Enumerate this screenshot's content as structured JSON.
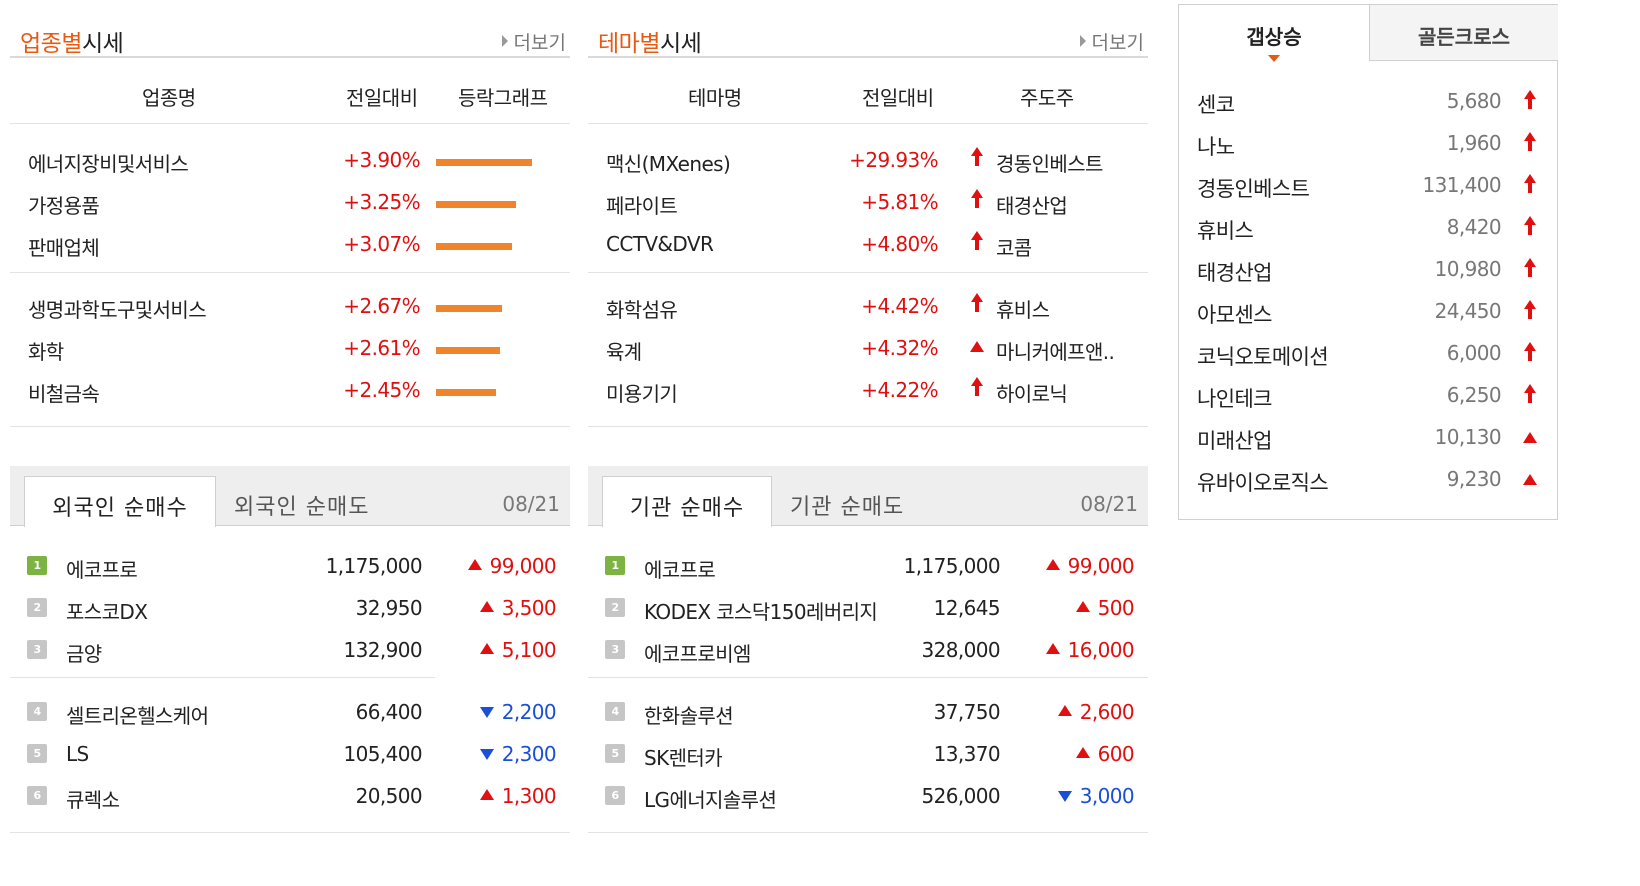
{
  "sector": {
    "title_accent": "업종별",
    "title_rest": "시세",
    "more": "더보기",
    "headers": [
      "업종명",
      "전일대비",
      "등락그래프"
    ],
    "rows": [
      {
        "name": "에너지장비및서비스",
        "change": "+3.90%",
        "value": 3.9
      },
      {
        "name": "가정용품",
        "change": "+3.25%",
        "value": 3.25
      },
      {
        "name": "판매업체",
        "change": "+3.07%",
        "value": 3.07
      },
      {
        "name": "생명과학도구및서비스",
        "change": "+2.67%",
        "value": 2.67
      },
      {
        "name": "화학",
        "change": "+2.61%",
        "value": 2.61
      },
      {
        "name": "비철금속",
        "change": "+2.45%",
        "value": 2.45
      }
    ]
  },
  "theme": {
    "title_accent": "테마별",
    "title_rest": "시세",
    "more": "더보기",
    "headers": [
      "테마명",
      "전일대비",
      "주도주"
    ],
    "rows": [
      {
        "name": "맥신(MXenes)",
        "change": "+29.93%",
        "leader": "경동인베스트",
        "icon": "up-arrow-icon"
      },
      {
        "name": "페라이트",
        "change": "+5.81%",
        "leader": "태경산업",
        "icon": "up-arrow-icon"
      },
      {
        "name": "CCTV&DVR",
        "change": "+4.80%",
        "leader": "코콤",
        "icon": "up-arrow-icon"
      },
      {
        "name": "화학섬유",
        "change": "+4.42%",
        "leader": "휴비스",
        "icon": "up-arrow-icon"
      },
      {
        "name": "육계",
        "change": "+4.32%",
        "leader": "마니커에프앤..",
        "icon": "up-triangle-icon"
      },
      {
        "name": "미용기기",
        "change": "+4.22%",
        "leader": "하이로닉",
        "icon": "up-arrow-icon"
      }
    ]
  },
  "gap": {
    "tabs": [
      "갭상승",
      "골든크로스"
    ],
    "rows": [
      {
        "name": "센코",
        "price": "5,680",
        "icon": "up-arrow-icon"
      },
      {
        "name": "나노",
        "price": "1,960",
        "icon": "up-arrow-icon"
      },
      {
        "name": "경동인베스트",
        "price": "131,400",
        "icon": "up-arrow-icon"
      },
      {
        "name": "휴비스",
        "price": "8,420",
        "icon": "up-arrow-icon"
      },
      {
        "name": "태경산업",
        "price": "10,980",
        "icon": "up-arrow-icon"
      },
      {
        "name": "아모센스",
        "price": "24,450",
        "icon": "up-arrow-icon"
      },
      {
        "name": "코닉오토메이션",
        "price": "6,000",
        "icon": "up-arrow-icon"
      },
      {
        "name": "나인테크",
        "price": "6,250",
        "icon": "up-arrow-icon"
      },
      {
        "name": "미래산업",
        "price": "10,130",
        "icon": "up-triangle-icon"
      },
      {
        "name": "유바이오로직스",
        "price": "9,230",
        "icon": "up-triangle-icon"
      }
    ]
  },
  "foreign": {
    "tabs": [
      "외국인 순매수",
      "외국인 순매도"
    ],
    "date": "08/21",
    "rows": [
      {
        "rank": "1",
        "name": "에코프로",
        "price": "1,175,000",
        "change": "99,000",
        "dir": "up"
      },
      {
        "rank": "2",
        "name": "포스코DX",
        "price": "32,950",
        "change": "3,500",
        "dir": "up"
      },
      {
        "rank": "3",
        "name": "금양",
        "price": "132,900",
        "change": "5,100",
        "dir": "up"
      },
      {
        "rank": "4",
        "name": "셀트리온헬스케어",
        "price": "66,400",
        "change": "2,200",
        "dir": "down"
      },
      {
        "rank": "5",
        "name": "LS",
        "price": "105,400",
        "change": "2,300",
        "dir": "down"
      },
      {
        "rank": "6",
        "name": "큐렉소",
        "price": "20,500",
        "change": "1,300",
        "dir": "up"
      }
    ]
  },
  "institution": {
    "tabs": [
      "기관 순매수",
      "기관 순매도"
    ],
    "date": "08/21",
    "rows": [
      {
        "rank": "1",
        "name": "에코프로",
        "price": "1,175,000",
        "change": "99,000",
        "dir": "up"
      },
      {
        "rank": "2",
        "name": "KODEX 코스닥150레버리지",
        "price": "12,645",
        "change": "500",
        "dir": "up"
      },
      {
        "rank": "3",
        "name": "에코프로비엠",
        "price": "328,000",
        "change": "16,000",
        "dir": "up"
      },
      {
        "rank": "4",
        "name": "한화솔루션",
        "price": "37,750",
        "change": "2,600",
        "dir": "up"
      },
      {
        "rank": "5",
        "name": "SK렌터카",
        "price": "13,370",
        "change": "600",
        "dir": "up"
      },
      {
        "rank": "6",
        "name": "LG에너지솔루션",
        "price": "526,000",
        "change": "3,000",
        "dir": "down"
      }
    ]
  }
}
